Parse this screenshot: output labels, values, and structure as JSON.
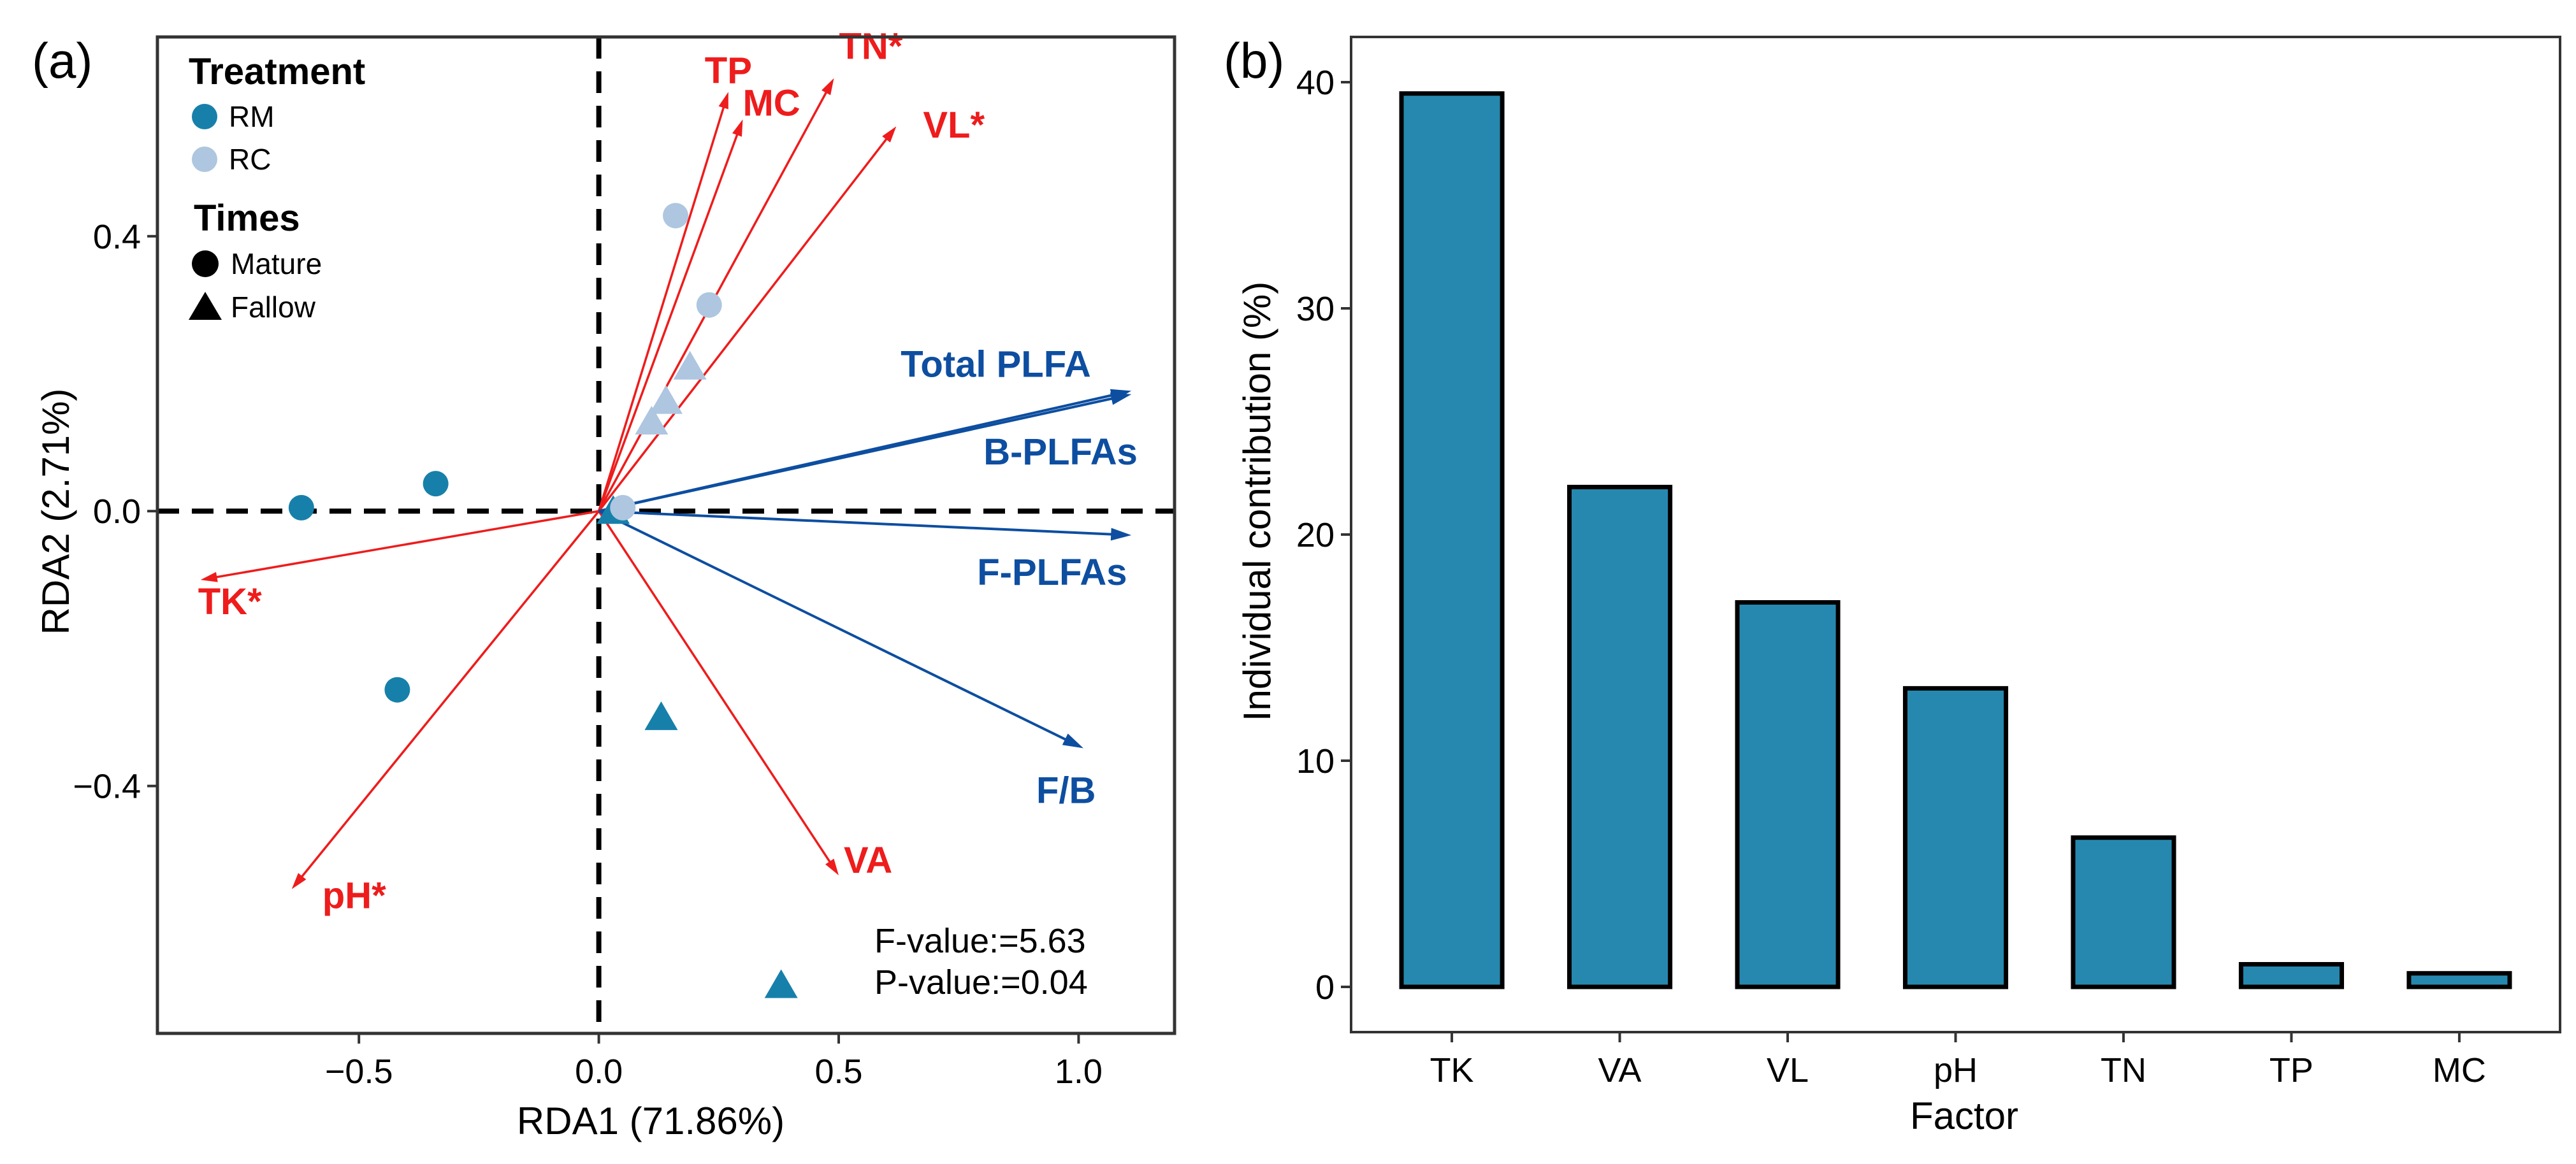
{
  "colors": {
    "RM": "#1780aa",
    "RC": "#aec6e0",
    "env_arrow": "#ee1c1c",
    "species_arrow": "#0d4ea0",
    "bar_fill": "#2688ae",
    "frame": "#333333"
  },
  "chart_data": [
    {
      "type": "scatter",
      "panel": "(a)",
      "xlabel": "RDA1 (71.86%)",
      "ylabel": "RDA2 (2.71%)",
      "xlim": [
        -0.92,
        1.2
      ],
      "ylim": [
        -0.76,
        0.69
      ],
      "x_ticks": [
        -0.5,
        0.0,
        0.5,
        1.0
      ],
      "x_tick_labels": [
        "−0.5",
        "0.0",
        "0.5",
        "1.0"
      ],
      "y_ticks": [
        -0.4,
        0.0,
        0.4
      ],
      "y_tick_labels": [
        "−0.4",
        "0.0",
        "0.4"
      ],
      "grid": false,
      "zero_lines": "dashed",
      "legend": {
        "placement": "top-left",
        "treatment_title": "Treatment",
        "treatment": [
          {
            "label": "RM",
            "color_key": "RM"
          },
          {
            "label": "RC",
            "color_key": "RC"
          }
        ],
        "times_title": "Times",
        "times": [
          {
            "label": "Mature",
            "shape": "circle"
          },
          {
            "label": "Fallow",
            "shape": "triangle"
          }
        ]
      },
      "points": [
        {
          "treatment": "RM",
          "time": "Mature",
          "x": -0.62,
          "y": 0.005
        },
        {
          "treatment": "RM",
          "time": "Mature",
          "x": -0.34,
          "y": 0.04
        },
        {
          "treatment": "RM",
          "time": "Mature",
          "x": -0.42,
          "y": -0.26
        },
        {
          "treatment": "RM",
          "time": "Fallow",
          "x": 0.13,
          "y": -0.3
        },
        {
          "treatment": "RM",
          "time": "Fallow",
          "x": 0.38,
          "y": -0.69
        },
        {
          "treatment": "RM",
          "time": "Fallow",
          "x": 0.03,
          "y": 0.0
        },
        {
          "treatment": "RC",
          "time": "Mature",
          "x": 0.16,
          "y": 0.43
        },
        {
          "treatment": "RC",
          "time": "Mature",
          "x": 0.23,
          "y": 0.3
        },
        {
          "treatment": "RC",
          "time": "Mature",
          "x": 0.05,
          "y": 0.005
        },
        {
          "treatment": "RC",
          "time": "Fallow",
          "x": 0.19,
          "y": 0.21
        },
        {
          "treatment": "RC",
          "time": "Fallow",
          "x": 0.14,
          "y": 0.16
        },
        {
          "treatment": "RC",
          "time": "Fallow",
          "x": 0.11,
          "y": 0.13
        }
      ],
      "env_vectors": [
        {
          "label": "TP",
          "x": 0.27,
          "y": 0.61
        },
        {
          "label": "MC",
          "x": 0.3,
          "y": 0.57
        },
        {
          "label": "TN*",
          "x": 0.49,
          "y": 0.63
        },
        {
          "label": "VL*",
          "x": 0.62,
          "y": 0.56
        },
        {
          "label": "TK*",
          "x": -0.83,
          "y": -0.1
        },
        {
          "label": "pH*",
          "x": -0.64,
          "y": -0.55
        },
        {
          "label": "VA",
          "x": 0.5,
          "y": -0.53
        }
      ],
      "species_vectors": [
        {
          "label": "Total PLFA",
          "x": 1.11,
          "y": 0.175
        },
        {
          "label": "B-PLFAs",
          "x": 1.11,
          "y": 0.17
        },
        {
          "label": "F-PLFAs",
          "x": 1.11,
          "y": -0.035
        },
        {
          "label": "F/B",
          "x": 1.01,
          "y": -0.345
        }
      ],
      "annotations": [
        "F-value:=5.63",
        "P-value:=0.04"
      ]
    },
    {
      "type": "bar",
      "panel": "(b)",
      "xlabel": "Factor",
      "ylabel": "Individual contribution (%)",
      "categories": [
        "TK",
        "VA",
        "VL",
        "pH",
        "TN",
        "TP",
        "MC"
      ],
      "values": [
        39.5,
        22.1,
        17.0,
        13.2,
        6.6,
        1.0,
        0.6
      ],
      "ylim": [
        -2,
        42
      ],
      "y_ticks": [
        0,
        10,
        20,
        30,
        40
      ],
      "grid": false
    }
  ]
}
